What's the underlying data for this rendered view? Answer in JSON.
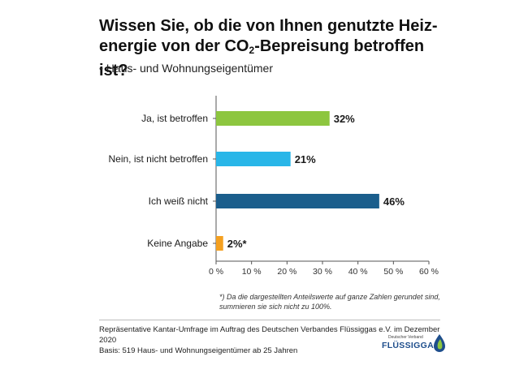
{
  "title": {
    "line1": "Wissen Sie, ob die von Ihnen genutzte Heiz-",
    "line2_pre": "energie von der CO",
    "line2_sub": "2",
    "line2_post": "-Bepreisung betroffen ist?"
  },
  "subtitle": "• Haus- und Wohnungseigentümer",
  "footnote": "*) Da die dargestellten Anteilswerte auf ganze Zahlen gerundet sind, summieren sie sich nicht zu 100%.",
  "source": {
    "line1": "Repräsentative Kantar-Umfrage im Auftrag des Deutschen Verbandes Flüssiggas e.V. im Dezember 2020",
    "line2": "Basis: 519 Haus- und Wohnungseigentümer ab 25 Jahren"
  },
  "logo": {
    "top_text": "Deutscher Verband",
    "main_text": "FLÜSSIGGAS"
  },
  "chart_data": {
    "type": "bar",
    "orientation": "horizontal",
    "categories": [
      "Ja, ist betroffen",
      "Nein, ist nicht betroffen",
      "Ich weiß nicht",
      "Keine Angabe"
    ],
    "values": [
      32,
      21,
      46,
      2
    ],
    "value_labels": [
      "32%",
      "21%",
      "46%",
      "2%*"
    ],
    "colors": [
      "#8dc63f",
      "#29b6e8",
      "#1b5e8c",
      "#f4a020"
    ],
    "xlim": [
      0,
      60
    ],
    "xticks": [
      0,
      10,
      20,
      30,
      40,
      50,
      60
    ],
    "xtick_labels": [
      "0 %",
      "10 %",
      "20 %",
      "30 %",
      "40 %",
      "50 %",
      "60 %"
    ],
    "grid": false,
    "legend": "none"
  }
}
